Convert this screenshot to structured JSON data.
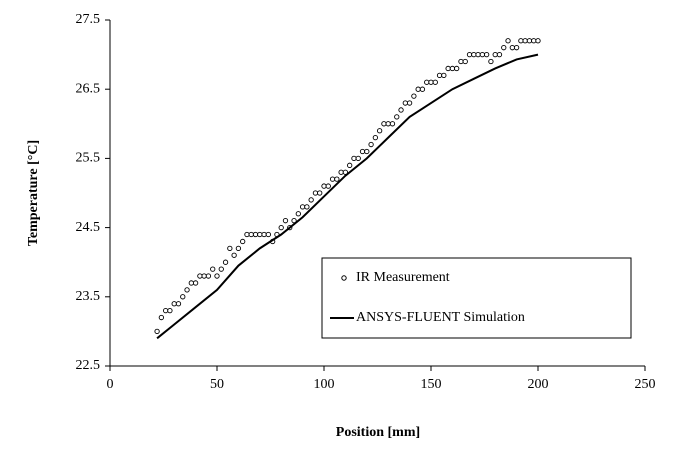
{
  "chart_data": {
    "type": "scatter",
    "xlabel": "Position [mm]",
    "ylabel": "Temperature [°C]",
    "xlim": [
      0,
      250
    ],
    "xticks": [
      0,
      50,
      100,
      150,
      200,
      250
    ],
    "ylim": [
      22.5,
      27.5
    ],
    "yticks": [
      22.5,
      23.5,
      24.5,
      25.5,
      26.5,
      27.5
    ],
    "grid": false,
    "legend": "lower right",
    "series": [
      {
        "name": "IR Measurement",
        "type": "scatter",
        "color": "#000000",
        "x": [
          22,
          24,
          26,
          28,
          30,
          32,
          34,
          36,
          38,
          40,
          42,
          44,
          46,
          48,
          50,
          52,
          54,
          56,
          58,
          60,
          62,
          64,
          66,
          68,
          70,
          72,
          74,
          76,
          78,
          80,
          82,
          84,
          86,
          88,
          90,
          92,
          94,
          96,
          98,
          100,
          102,
          104,
          106,
          108,
          110,
          112,
          114,
          116,
          118,
          120,
          122,
          124,
          126,
          128,
          130,
          132,
          134,
          136,
          138,
          140,
          142,
          144,
          146,
          148,
          150,
          152,
          154,
          156,
          158,
          160,
          162,
          164,
          166,
          168,
          170,
          172,
          174,
          176,
          178,
          180,
          182,
          184,
          186,
          188,
          190,
          192,
          194,
          196,
          198,
          200
        ],
        "values": [
          23.0,
          23.2,
          23.3,
          23.3,
          23.4,
          23.4,
          23.5,
          23.6,
          23.7,
          23.7,
          23.8,
          23.8,
          23.8,
          23.9,
          23.8,
          23.9,
          24.0,
          24.2,
          24.1,
          24.2,
          24.3,
          24.4,
          24.4,
          24.4,
          24.4,
          24.4,
          24.4,
          24.3,
          24.4,
          24.5,
          24.6,
          24.5,
          24.6,
          24.7,
          24.8,
          24.8,
          24.9,
          25.0,
          25.0,
          25.1,
          25.1,
          25.2,
          25.2,
          25.3,
          25.3,
          25.4,
          25.5,
          25.5,
          25.6,
          25.6,
          25.7,
          25.8,
          25.9,
          26.0,
          26.0,
          26.0,
          26.1,
          26.2,
          26.3,
          26.3,
          26.4,
          26.5,
          26.5,
          26.6,
          26.6,
          26.6,
          26.7,
          26.7,
          26.8,
          26.8,
          26.8,
          26.9,
          26.9,
          27.0,
          27.0,
          27.0,
          27.0,
          27.0,
          26.9,
          27.0,
          27.0,
          27.1,
          27.2,
          27.1,
          27.1,
          27.2,
          27.2,
          27.2,
          27.2,
          27.2
        ]
      },
      {
        "name": "ANSYS-FLUENT Simulation",
        "type": "line",
        "color": "#000000",
        "x": [
          22,
          30,
          40,
          50,
          60,
          70,
          80,
          90,
          100,
          110,
          120,
          130,
          140,
          150,
          160,
          170,
          180,
          190,
          200
        ],
        "values": [
          22.9,
          23.1,
          23.35,
          23.6,
          23.95,
          24.2,
          24.4,
          24.65,
          24.95,
          25.25,
          25.5,
          25.8,
          26.1,
          26.3,
          26.5,
          26.65,
          26.8,
          26.93,
          27.0
        ]
      }
    ]
  }
}
